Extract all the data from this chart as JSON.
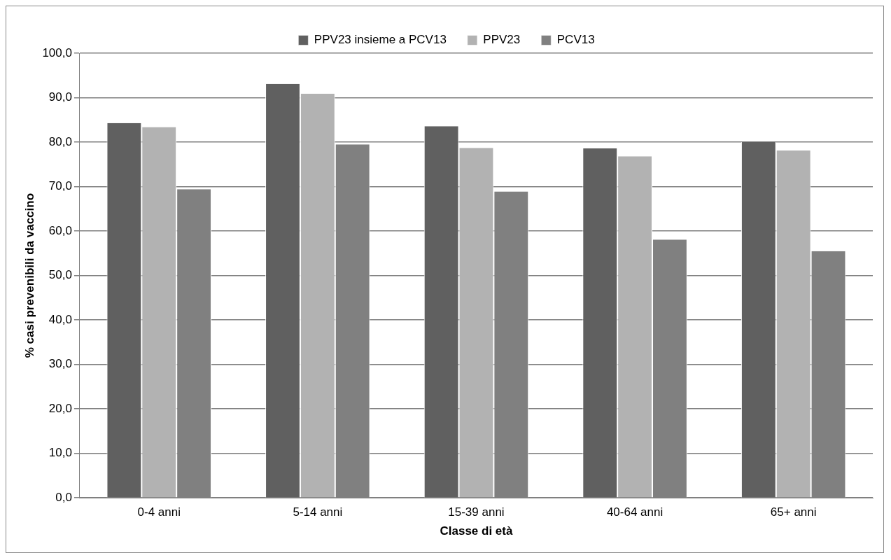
{
  "chart_data": {
    "type": "bar",
    "xlabel": "Classe di età",
    "ylabel": "% casi prevenibili da vaccino",
    "categories": [
      "0-4 anni",
      "5-14 anni",
      "15-39 anni",
      "40-64 anni",
      "65+ anni"
    ],
    "series": [
      {
        "name": "PPV23 insieme a PCV13",
        "color": "#606060",
        "values": [
          84.3,
          93.1,
          83.6,
          78.6,
          80.0
        ]
      },
      {
        "name": "PPV23",
        "color": "#b2b2b2",
        "values": [
          83.4,
          90.9,
          78.7,
          76.8,
          78.1
        ]
      },
      {
        "name": "PCV13",
        "color": "#808080",
        "values": [
          69.4,
          79.5,
          68.9,
          58.1,
          55.5
        ]
      }
    ],
    "ylim": [
      0,
      100
    ],
    "yticks": [
      {
        "value": 0,
        "label": "0,0"
      },
      {
        "value": 10,
        "label": "10,0"
      },
      {
        "value": 20,
        "label": "20,0"
      },
      {
        "value": 30,
        "label": "30,0"
      },
      {
        "value": 40,
        "label": "40,0"
      },
      {
        "value": 50,
        "label": "50,0"
      },
      {
        "value": 60,
        "label": "60,0"
      },
      {
        "value": 70,
        "label": "70,0"
      },
      {
        "value": 80,
        "label": "80,0"
      },
      {
        "value": 90,
        "label": "90,0"
      },
      {
        "value": 100,
        "label": "100,0"
      }
    ],
    "grid": "y",
    "legend": "top"
  }
}
